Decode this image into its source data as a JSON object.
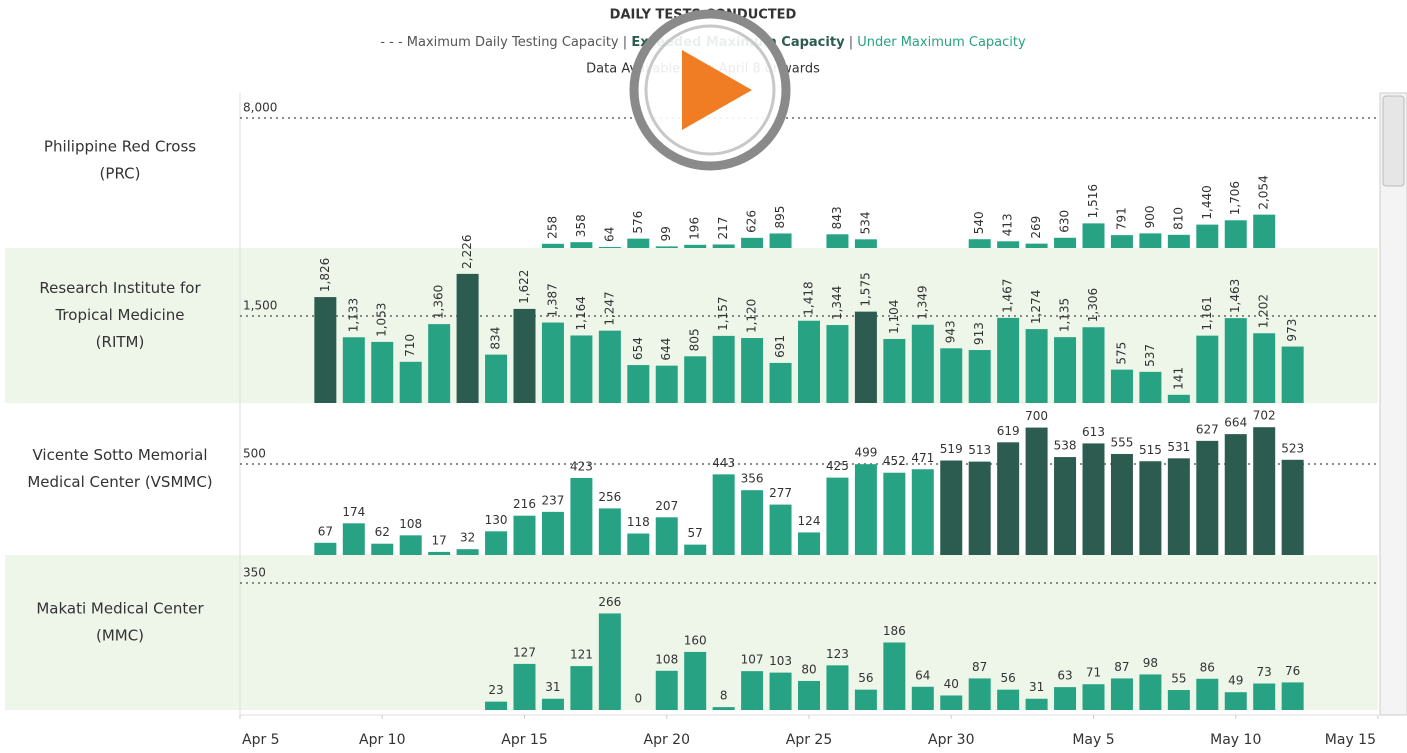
{
  "chart_data": {
    "type": "bar",
    "title": "DAILY TESTS CONDUCTED",
    "legend": [
      "- - - Maximum Daily Testing Capacity",
      "Exceeded Maximum Capacity",
      "Under Maximum Capacity"
    ],
    "separator": "|",
    "note": "Data Available from April 8 onwards",
    "colors": {
      "over": "#2b5c4f",
      "under": "#27a383",
      "over_label": "#555555",
      "under_label": "#4fae92",
      "shade": "#eef6ea"
    },
    "xlim": [
      "Apr 5",
      "May 15"
    ],
    "xticks": [
      "Apr 5",
      "Apr 10",
      "Apr 15",
      "Apr 20",
      "Apr 25",
      "Apr 30",
      "May 5",
      "May 10",
      "May 15"
    ],
    "panels": [
      {
        "name": [
          "Philippine Red Cross",
          "(PRC)"
        ],
        "shaded": false,
        "vertical_labels": true,
        "ylim": [
          0,
          9540
        ],
        "yticks": [
          {
            "value": 8000,
            "label": "8,000"
          }
        ],
        "x": [
          "Apr 16",
          "Apr 17",
          "Apr 18",
          "Apr 19",
          "Apr 20",
          "Apr 21",
          "Apr 22",
          "Apr 23",
          "Apr 24",
          "Apr 26",
          "Apr 27",
          "May 1",
          "May 2",
          "May 3",
          "May 4",
          "May 5",
          "May 6",
          "May 7",
          "May 8",
          "May 9",
          "May 10",
          "May 11"
        ],
        "values": [
          258,
          358,
          64,
          576,
          99,
          196,
          217,
          626,
          895,
          843,
          534,
          540,
          413,
          269,
          630,
          1516,
          791,
          900,
          810,
          1440,
          1706,
          2054
        ],
        "value_labels": [
          "258",
          "358",
          "64",
          "576",
          "99",
          "196",
          "217",
          "626",
          "895",
          "843",
          "534",
          "540",
          "413",
          "269",
          "630",
          "1,516",
          "791",
          "900",
          "810",
          "1,440",
          "1,706",
          "2,054"
        ]
      },
      {
        "name": [
          "Research Institute for",
          "Tropical Medicine",
          "(RITM)"
        ],
        "shaded": true,
        "vertical_labels": true,
        "ylim": [
          0,
          2672
        ],
        "yticks": [
          {
            "value": 1500,
            "label": "1,500"
          }
        ],
        "x": [
          "Apr 8",
          "Apr 9",
          "Apr 10",
          "Apr 11",
          "Apr 12",
          "Apr 13",
          "Apr 14",
          "Apr 15",
          "Apr 16",
          "Apr 17",
          "Apr 18",
          "Apr 19",
          "Apr 20",
          "Apr 21",
          "Apr 22",
          "Apr 23",
          "Apr 24",
          "Apr 25",
          "Apr 26",
          "Apr 27",
          "Apr 28",
          "Apr 29",
          "Apr 30",
          "May 1",
          "May 2",
          "May 3",
          "May 4",
          "May 5",
          "May 6",
          "May 7",
          "May 8",
          "May 9",
          "May 10",
          "May 11",
          "May 12"
        ],
        "values": [
          1826,
          1133,
          1053,
          710,
          1360,
          2226,
          834,
          1622,
          1387,
          1164,
          1247,
          654,
          644,
          805,
          1157,
          1120,
          691,
          1418,
          1344,
          1575,
          1104,
          1349,
          943,
          913,
          1467,
          1274,
          1135,
          1306,
          575,
          537,
          141,
          1161,
          1463,
          1202,
          973
        ],
        "value_labels": [
          "1,826",
          "1,133",
          "1,053",
          "710",
          "1,360",
          "2,226",
          "834",
          "1,622",
          "1,387",
          "1,164",
          "1,247",
          "654",
          "644",
          "805",
          "1,157",
          "1,120",
          "691",
          "1,418",
          "1,344",
          "1,575",
          "1,104",
          "1,349",
          "943",
          "913",
          "1,467",
          "1,274",
          "1,135",
          "1,306",
          "575",
          "537",
          "141",
          "1,161",
          "1,463",
          "1,202",
          "973"
        ]
      },
      {
        "name": [
          "Vicente Sotto Memorial",
          "Medical Center (VSMMC)"
        ],
        "shaded": false,
        "vertical_labels": false,
        "ylim": [
          0,
          835
        ],
        "yticks": [
          500
        ],
        "x": [
          "Apr 8",
          "Apr 9",
          "Apr 10",
          "Apr 11",
          "Apr 12",
          "Apr 13",
          "Apr 14",
          "Apr 15",
          "Apr 16",
          "Apr 17",
          "Apr 18",
          "Apr 19",
          "Apr 20",
          "Apr 21",
          "Apr 22",
          "Apr 23",
          "Apr 24",
          "Apr 25",
          "Apr 26",
          "Apr 27",
          "Apr 28",
          "Apr 29",
          "Apr 30",
          "May 1",
          "May 2",
          "May 3",
          "May 4",
          "May 5",
          "May 6",
          "May 7",
          "May 8",
          "May 9",
          "May 10",
          "May 11",
          "May 12"
        ],
        "values": [
          67,
          174,
          62,
          108,
          17,
          32,
          130,
          216,
          237,
          423,
          256,
          118,
          207,
          57,
          443,
          356,
          277,
          124,
          425,
          499,
          452,
          471,
          519,
          513,
          619,
          700,
          538,
          613,
          555,
          515,
          531,
          627,
          664,
          702,
          523
        ]
      },
      {
        "name": [
          "Makati Medical Center",
          "(MMC)"
        ],
        "shaded": true,
        "vertical_labels": false,
        "ylim": [
          0,
          427
        ],
        "yticks": [
          350
        ],
        "x": [
          "Apr 14",
          "Apr 15",
          "Apr 16",
          "Apr 17",
          "Apr 18",
          "Apr 19",
          "Apr 20",
          "Apr 21",
          "Apr 22",
          "Apr 23",
          "Apr 24",
          "Apr 25",
          "Apr 26",
          "Apr 27",
          "Apr 28",
          "Apr 29",
          "Apr 30",
          "May 1",
          "May 2",
          "May 3",
          "May 4",
          "May 5",
          "May 6",
          "May 7",
          "May 8",
          "May 9",
          "May 10",
          "May 11",
          "May 12"
        ],
        "values": [
          23,
          127,
          31,
          121,
          266,
          0,
          108,
          160,
          8,
          107,
          103,
          80,
          123,
          56,
          186,
          64,
          40,
          87,
          56,
          31,
          63,
          71,
          87,
          98,
          55,
          86,
          49,
          73,
          76
        ]
      }
    ]
  }
}
